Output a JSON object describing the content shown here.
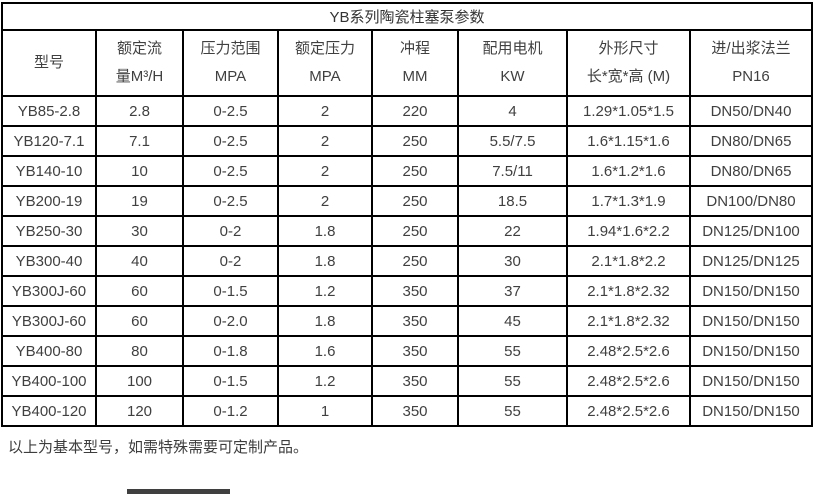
{
  "table": {
    "title": "YB系列陶瓷柱塞泵参数",
    "columns": [
      {
        "line1": "型号",
        "line2": ""
      },
      {
        "line1": "额定流",
        "line2": "量M³/H"
      },
      {
        "line1": "压力范围",
        "line2": "MPA"
      },
      {
        "line1": "额定压力",
        "line2": "MPA"
      },
      {
        "line1": "冲程",
        "line2": "MM"
      },
      {
        "line1": "配用电机",
        "line2": "KW"
      },
      {
        "line1": "外形尺寸",
        "line2": "长*宽*高 (M)"
      },
      {
        "line1": "进/出浆法兰",
        "line2": "PN16"
      }
    ],
    "rows": [
      [
        "YB85-2.8",
        "2.8",
        "0-2.5",
        "2",
        "220",
        "4",
        "1.29*1.05*1.5",
        "DN50/DN40"
      ],
      [
        "YB120-7.1",
        "7.1",
        "0-2.5",
        "2",
        "250",
        "5.5/7.5",
        "1.6*1.15*1.6",
        "DN80/DN65"
      ],
      [
        "YB140-10",
        "10",
        "0-2.5",
        "2",
        "250",
        "7.5/11",
        "1.6*1.2*1.6",
        "DN80/DN65"
      ],
      [
        "YB200-19",
        "19",
        "0-2.5",
        "2",
        "250",
        "18.5",
        "1.7*1.3*1.9",
        "DN100/DN80"
      ],
      [
        "YB250-30",
        "30",
        "0-2",
        "1.8",
        "250",
        "22",
        "1.94*1.6*2.2",
        "DN125/DN100"
      ],
      [
        "YB300-40",
        "40",
        "0-2",
        "1.8",
        "250",
        "30",
        "2.1*1.8*2.2",
        "DN125/DN125"
      ],
      [
        "YB300J-60",
        "60",
        "0-1.5",
        "1.2",
        "350",
        "37",
        "2.1*1.8*2.32",
        "DN150/DN150"
      ],
      [
        "YB300J-60",
        "60",
        "0-2.0",
        "1.8",
        "350",
        "45",
        "2.1*1.8*2.32",
        "DN150/DN150"
      ],
      [
        "YB400-80",
        "80",
        "0-1.8",
        "1.6",
        "350",
        "55",
        "2.48*2.5*2.6",
        "DN150/DN150"
      ],
      [
        "YB400-100",
        "100",
        "0-1.5",
        "1.2",
        "350",
        "55",
        "2.48*2.5*2.6",
        "DN150/DN150"
      ],
      [
        "YB400-120",
        "120",
        "0-1.2",
        "1",
        "350",
        "55",
        "2.48*2.5*2.6",
        "DN150/DN150"
      ]
    ]
  },
  "footer": {
    "note": "以上为基本型号，如需特殊需要可定制产品。"
  },
  "colors": {
    "border": "#000000",
    "text": "#404040",
    "background": "#ffffff"
  }
}
